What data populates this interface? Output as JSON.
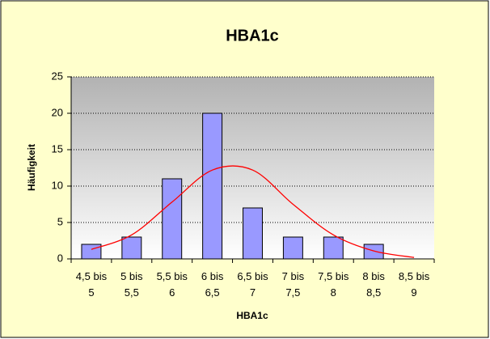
{
  "chart_data": {
    "type": "bar",
    "title": "HBA1c",
    "x_label": "HBA1c",
    "y_label": "Häufigkeit",
    "categories": [
      "4,5 bis 5",
      "5 bis 5,5",
      "5,5 bis 6",
      "6 bis 6,5",
      "6,5 bis 7",
      "7 bis 7,5",
      "7,5 bis 8",
      "8 bis 8,5",
      "8,5 bis 9"
    ],
    "series": [
      {
        "type": "bar",
        "color": "#9999ff",
        "values": [
          2,
          3,
          11,
          20,
          7,
          3,
          3,
          2,
          0
        ]
      },
      {
        "type": "line",
        "color": "#ff0000",
        "values": [
          1.3,
          3.3,
          7.8,
          12.2,
          12.2,
          7.5,
          3.3,
          1.1,
          0.2
        ]
      }
    ],
    "ylim": [
      0,
      25
    ],
    "yticks": [
      0,
      5,
      10,
      15,
      20,
      25
    ],
    "grid": true
  }
}
